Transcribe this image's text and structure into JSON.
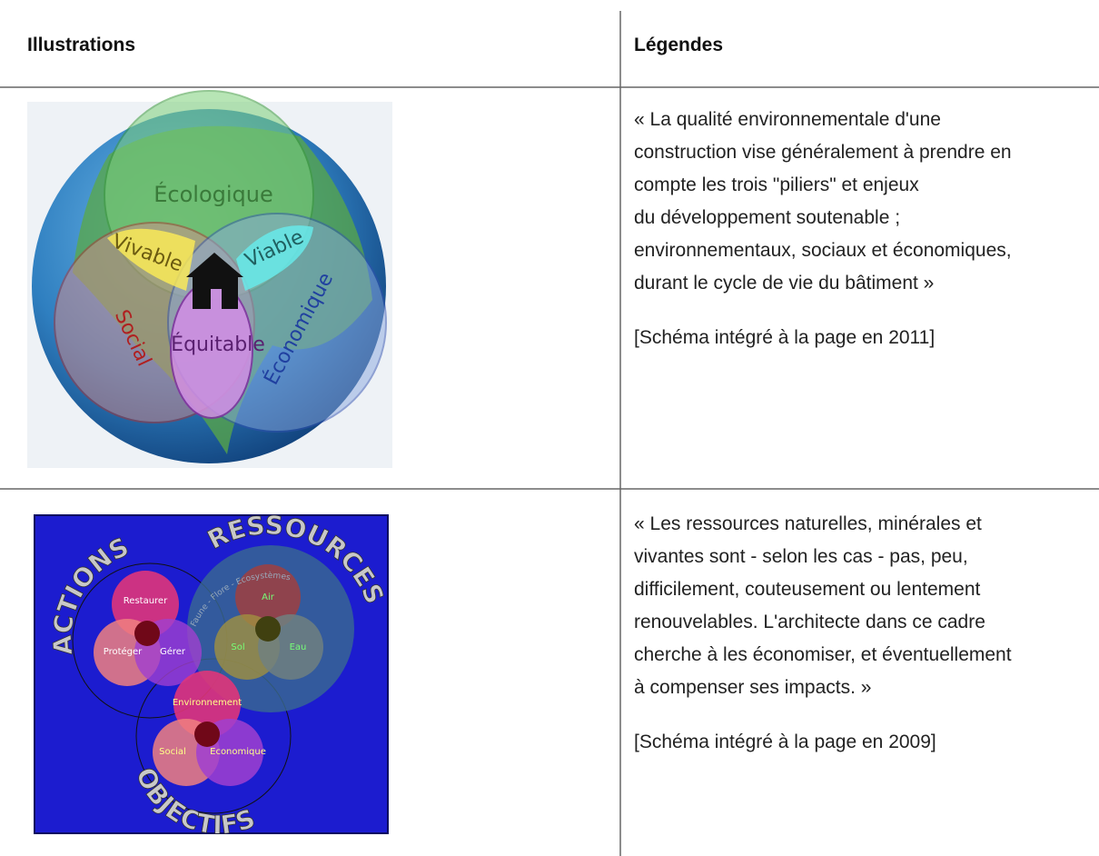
{
  "table": {
    "header": [
      "Illustrations",
      "Légendes"
    ],
    "rows": [
      {
        "illustration": {
          "labels": [
            "Écologique",
            "Vivable",
            "Viable",
            "Social",
            "Équitable",
            "Économique"
          ]
        },
        "legend": {
          "quote": [
            "« La qualité environnementale d'une",
            "construction vise généralement à prendre en",
            "compte les trois \"piliers\" et enjeux",
            "du développement soutenable ;",
            "environnementaux, sociaux et économiques,",
            "durant le cycle de vie du bâtiment »"
          ],
          "note": "[Schéma intégré à la page en 2011]"
        }
      },
      {
        "illustration": {
          "labels": [
            "ACTIONS",
            "RESSOURCES",
            "OBJECTIFS",
            "Faune - Flore - Ecosystèmes",
            "Restaurer",
            "Protéger",
            "Gérer",
            "Air",
            "Sol",
            "Eau",
            "Environnement",
            "Social",
            "Economique"
          ]
        },
        "legend": {
          "quote": [
            "« Les ressources naturelles, minérales et",
            "vivantes sont - selon les cas - pas, peu,",
            "difficilement, couteusement ou lentement",
            "renouvelables. L'architecte dans ce cadre",
            "cherche à les économiser, et éventuellement",
            "à compenser ses impacts. »"
          ],
          "note": "[Schéma intégré à la page en 2009]"
        }
      }
    ]
  }
}
